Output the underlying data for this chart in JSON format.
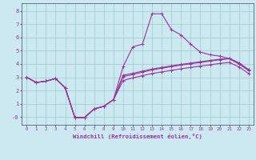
{
  "xlabel": "Windchill (Refroidissement éolien,°C)",
  "bg_color": "#cce8f0",
  "line_color": "#993399",
  "grid_color": "#99cccc",
  "hours": [
    0,
    1,
    2,
    3,
    4,
    5,
    6,
    7,
    8,
    9,
    10,
    11,
    12,
    13,
    14,
    15,
    16,
    17,
    18,
    19,
    20,
    21,
    22,
    23
  ],
  "line1": [
    3.0,
    2.6,
    2.7,
    2.9,
    2.2,
    -0.05,
    -0.05,
    0.6,
    0.8,
    1.3,
    3.8,
    5.3,
    5.5,
    7.8,
    7.8,
    6.6,
    6.2,
    5.5,
    4.9,
    4.7,
    4.6,
    4.4,
    4.0,
    3.5
  ],
  "line2": [
    3.0,
    2.6,
    2.7,
    2.9,
    2.2,
    -0.05,
    -0.05,
    0.6,
    0.8,
    1.3,
    3.05,
    3.2,
    3.38,
    3.55,
    3.68,
    3.8,
    3.92,
    4.02,
    4.12,
    4.22,
    4.32,
    4.4,
    4.05,
    3.55
  ],
  "line3": [
    3.0,
    2.6,
    2.7,
    2.9,
    2.2,
    -0.05,
    -0.05,
    0.6,
    0.8,
    1.3,
    3.15,
    3.3,
    3.46,
    3.62,
    3.74,
    3.86,
    3.97,
    4.07,
    4.17,
    4.27,
    4.36,
    4.44,
    4.09,
    3.58
  ],
  "line4": [
    3.0,
    2.6,
    2.7,
    2.9,
    2.2,
    -0.05,
    -0.05,
    0.6,
    0.8,
    1.3,
    2.75,
    2.95,
    3.12,
    3.28,
    3.4,
    3.52,
    3.64,
    3.74,
    3.84,
    3.94,
    4.04,
    4.12,
    3.78,
    3.28
  ],
  "ylim": [
    -0.6,
    8.6
  ],
  "xlim": [
    -0.5,
    23.5
  ],
  "yticks": [
    0,
    1,
    2,
    3,
    4,
    5,
    6,
    7,
    8
  ],
  "ytick_labels": [
    "-0",
    "1",
    "2",
    "3",
    "4",
    "5",
    "6",
    "7",
    "8"
  ],
  "xtick_labels": [
    "0",
    "1",
    "2",
    "3",
    "4",
    "5",
    "6",
    "7",
    "8",
    "9",
    "10",
    "11",
    "12",
    "13",
    "14",
    "15",
    "16",
    "17",
    "18",
    "19",
    "20",
    "21",
    "22",
    "23"
  ]
}
